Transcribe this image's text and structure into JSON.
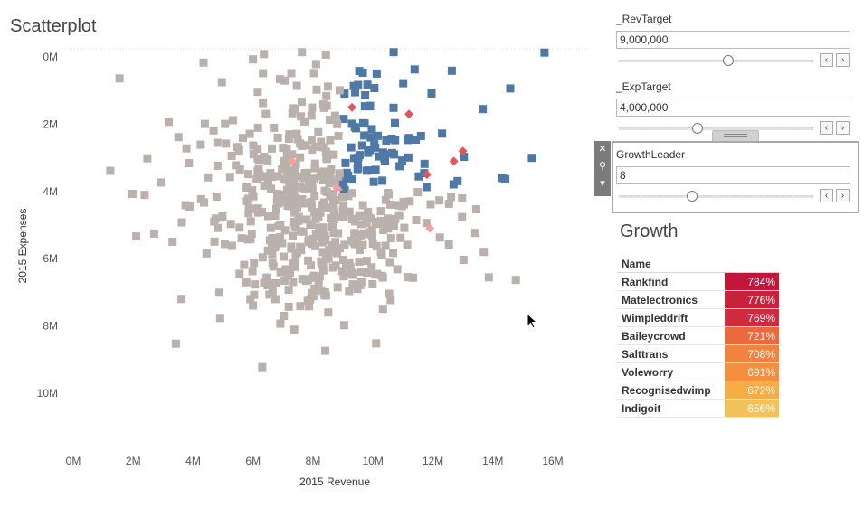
{
  "scatter": {
    "title": "Scatterplot",
    "xlabel": "2015 Revenue",
    "ylabel": "2015 Expenses",
    "x_ticks": [
      "0M",
      "2M",
      "4M",
      "6M",
      "8M",
      "10M",
      "12M",
      "14M",
      "16M"
    ],
    "y_ticks": [
      "0M",
      "2M",
      "4M",
      "6M",
      "8M",
      "10M"
    ],
    "colors": {
      "default": "#bab0ac",
      "target": "#4e79a7",
      "leader": "#e15759",
      "leader_light": "#ff9d9a"
    }
  },
  "chart_data": {
    "type": "scatter",
    "title": "Scatterplot",
    "xlabel": "2015 Revenue",
    "ylabel": "2015 Expenses",
    "xlim": [
      -0.3,
      16.9
    ],
    "ylim": [
      0,
      11.0
    ],
    "y_reversed": true,
    "grid": false,
    "seed": 8,
    "clusters": [
      {
        "name": "",
        "n": 140,
        "x": 9.3,
        "y": 3.0,
        "sx": 2.2,
        "sy": 2.0
      },
      {
        "name": "",
        "n": 320,
        "x": 8.3,
        "y": 4.9,
        "sx": 1.6,
        "sy": 1.5
      },
      {
        "name": "",
        "n": 90,
        "x": 7.0,
        "y": 3.4,
        "sx": 1.8,
        "sy": 1.6
      },
      {
        "name": "",
        "n": 30,
        "x": 5.0,
        "y": 5.0,
        "sx": 2.6,
        "sy": 2.0
      }
    ],
    "target_rule": {
      "rev_min": 9.0,
      "exp_max": 4.0
    },
    "leaders": [
      {
        "x": 9.3,
        "y": 1.5,
        "color": "leader"
      },
      {
        "x": 11.2,
        "y": 1.7,
        "color": "leader"
      },
      {
        "x": 13.0,
        "y": 2.8,
        "color": "leader"
      },
      {
        "x": 12.7,
        "y": 3.1,
        "color": "leader"
      },
      {
        "x": 11.8,
        "y": 3.5,
        "color": "leader"
      },
      {
        "x": 7.3,
        "y": 3.1,
        "color": "leader_light"
      },
      {
        "x": 8.8,
        "y": 3.9,
        "color": "leader_light"
      },
      {
        "x": 11.9,
        "y": 5.1,
        "color": "leader_light"
      }
    ]
  },
  "params": [
    {
      "name": "_RevTarget",
      "value": "9,000,000",
      "thumb": 0.56
    },
    {
      "name": "_ExpTarget",
      "value": "4,000,000",
      "thumb": 0.4
    },
    {
      "name": "GrowthLeader",
      "value": "8",
      "thumb": 0.37
    }
  ],
  "growth": {
    "title": "Growth",
    "header": "Name",
    "rows": [
      {
        "name": "Rankfind",
        "value": "784%",
        "color": "#c2173b"
      },
      {
        "name": "Matelectronics",
        "value": "776%",
        "color": "#c8223a"
      },
      {
        "name": "Wimpleddrift",
        "value": "769%",
        "color": "#cf2b3c"
      },
      {
        "name": "Baileycrowd",
        "value": "721%",
        "color": "#ea6a3e"
      },
      {
        "name": "Salttrans",
        "value": "708%",
        "color": "#f18240"
      },
      {
        "name": "Voleworry",
        "value": "691%",
        "color": "#f48f42"
      },
      {
        "name": "Recognisedwimp",
        "value": "672%",
        "color": "#f6ad48"
      },
      {
        "name": "Indigoit",
        "value": "656%",
        "color": "#f2c25a"
      }
    ]
  }
}
